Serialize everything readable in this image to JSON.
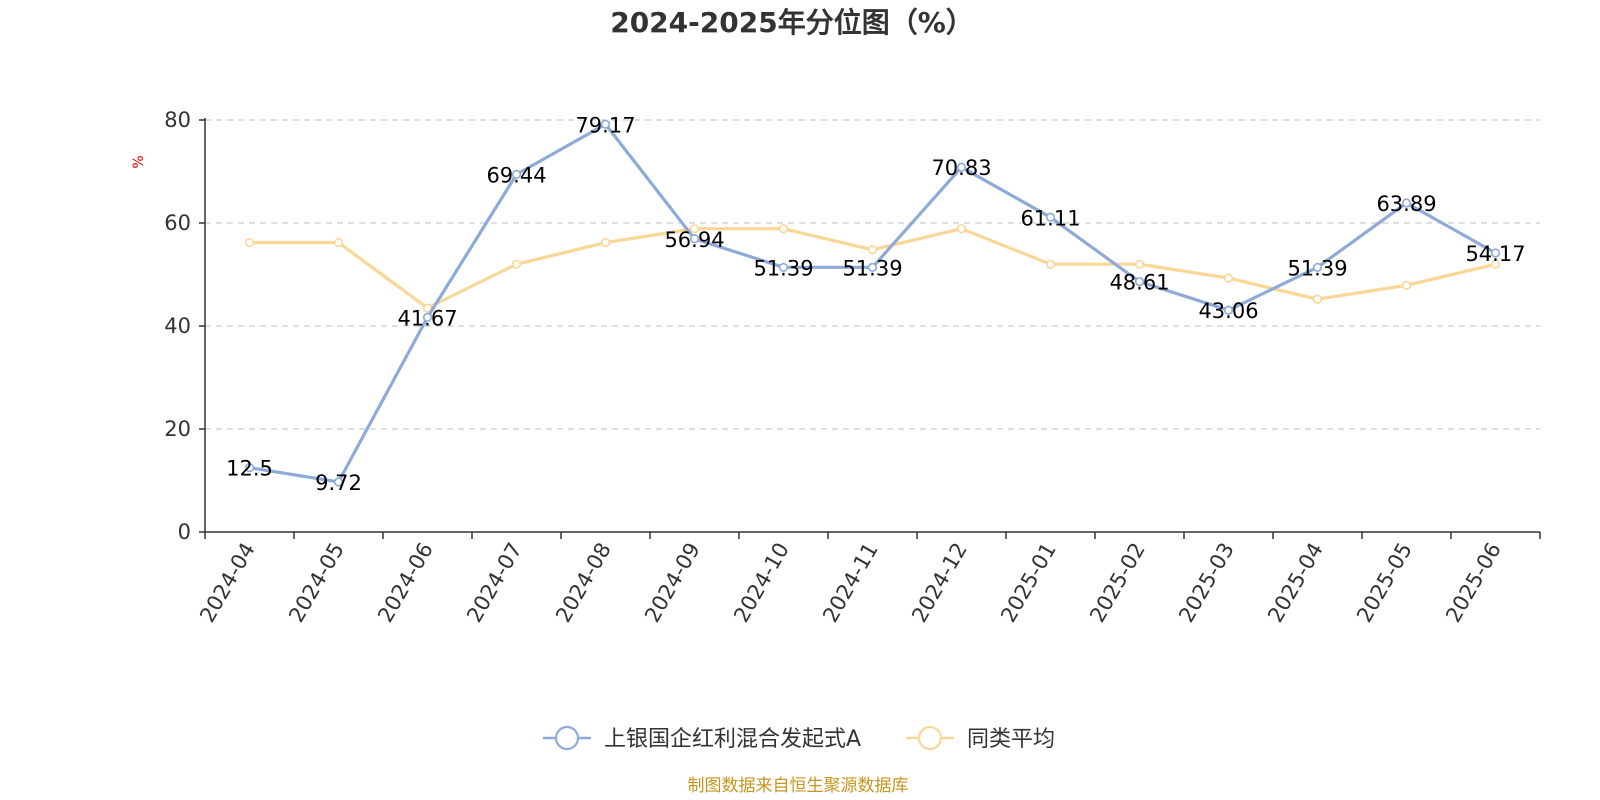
{
  "chart_data": {
    "type": "line",
    "title": "2024-2025年分位图（%）",
    "ylabel": "%",
    "xlabel": "",
    "ylim": [
      0,
      80
    ],
    "yticks": [
      0,
      20,
      40,
      60,
      80
    ],
    "grid": true,
    "legend_position": "bottom",
    "categories": [
      "2024-04",
      "2024-05",
      "2024-06",
      "2024-07",
      "2024-08",
      "2024-09",
      "2024-10",
      "2024-11",
      "2024-12",
      "2025-01",
      "2025-02",
      "2025-03",
      "2025-04",
      "2025-05",
      "2025-06"
    ],
    "series": [
      {
        "name": "上银国企红利混合发起式A",
        "color": "#8eaad8",
        "values": [
          12.5,
          9.72,
          41.67,
          69.44,
          79.17,
          56.94,
          51.39,
          51.39,
          70.83,
          61.11,
          48.61,
          43.06,
          51.39,
          63.89,
          54.17
        ],
        "data_labels": [
          "12.5",
          "9.72",
          "41.67",
          "69.44",
          "79.17",
          "56.94",
          "51.39",
          "51.39",
          "70.83",
          "61.11",
          "48.61",
          "43.06",
          "51.39",
          "63.89",
          "54.17"
        ]
      },
      {
        "name": "同类平均",
        "color": "#fad796",
        "values": [
          56.2,
          56.2,
          43.5,
          52.0,
          56.2,
          58.9,
          58.9,
          54.8,
          58.9,
          52.0,
          52.0,
          49.3,
          45.2,
          47.9,
          52.0
        ]
      }
    ]
  },
  "footer": {
    "source_text": "制图数据来自恒生聚源数据库"
  }
}
